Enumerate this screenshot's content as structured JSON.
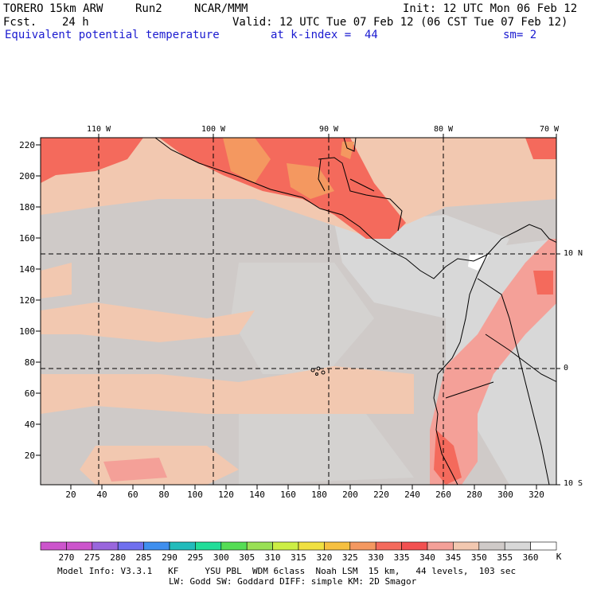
{
  "header": {
    "model": "TORERO",
    "resolution": "15km ARW",
    "run": "Run2",
    "org": "NCAR/MMM",
    "init": "Init: 12 UTC Mon 06 Feb 12",
    "fcst_label": "Fcst.",
    "fcst_value": "24 h",
    "valid": "Valid: 12 UTC Tue 07 Feb 12 (06 CST Tue 07 Feb 12)",
    "field": "Equivalent potential temperature",
    "level": "at k-index =  44",
    "smoothing": "sm= 2"
  },
  "map": {
    "lon_labels": [
      "110 W",
      "100 W",
      "90 W",
      "80 W",
      "70 W"
    ],
    "lat_labels": [
      "10 N",
      "0",
      "10 S"
    ],
    "y_ticks": [
      "220",
      "200",
      "180",
      "160",
      "140",
      "120",
      "100",
      "80",
      "60",
      "40",
      "20"
    ],
    "x_ticks": [
      "20",
      "40",
      "60",
      "80",
      "100",
      "120",
      "140",
      "160",
      "180",
      "200",
      "220",
      "240",
      "260",
      "280",
      "300",
      "320"
    ]
  },
  "colorbar": {
    "levels": [
      "270",
      "275",
      "280",
      "285",
      "290",
      "295",
      "300",
      "305",
      "310",
      "315",
      "320",
      "325",
      "330",
      "335",
      "340",
      "345",
      "350",
      "355",
      "360"
    ],
    "unit": "K",
    "colors": [
      "#cc55cc",
      "#9966dd",
      "#6f6fee",
      "#3f8fee",
      "#22bbbb",
      "#22dd99",
      "#55dd55",
      "#99e055",
      "#ccee44",
      "#f0e040",
      "#f6c040",
      "#f49860",
      "#f46a5c",
      "#f25050",
      "#f4a098",
      "#f2c8b0",
      "#cfcac8",
      "#d8d8d8",
      "#ffffff"
    ]
  },
  "footer": {
    "line1": "Model Info: V3.3.1   KF     YSU PBL  WDM 6class  Noah LSM  15 km,   44 levels,  103 sec",
    "line2": "LW: Godd SW: Goddard DIFF: simple KM: 2D Smagor"
  }
}
